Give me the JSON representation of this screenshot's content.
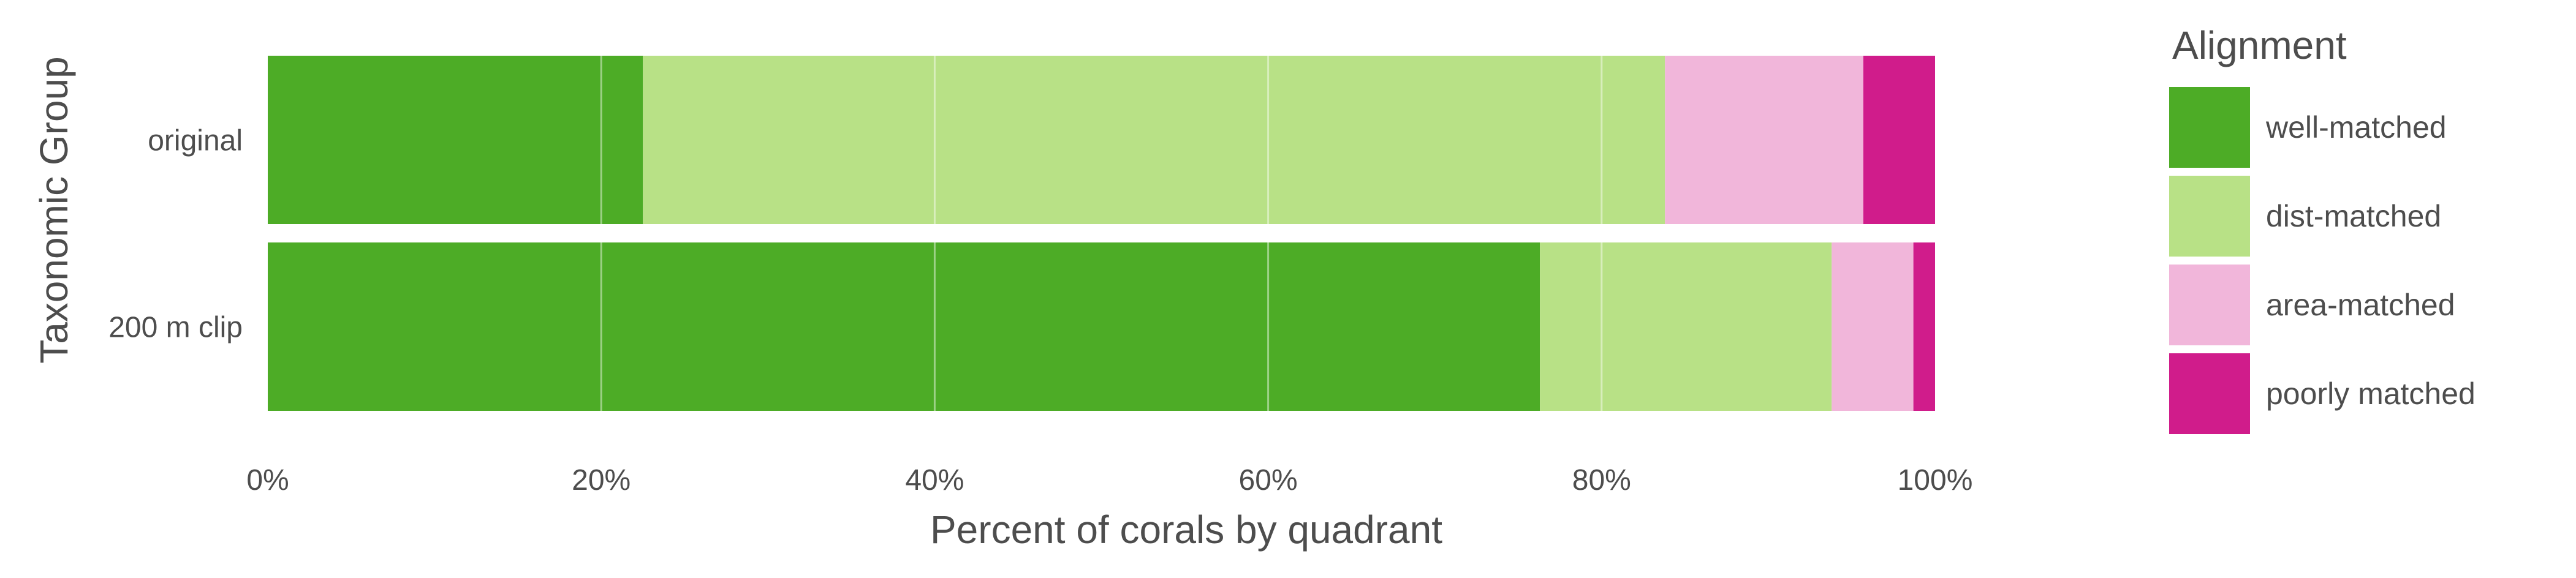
{
  "chart_data": {
    "type": "bar",
    "orientation": "horizontal",
    "stacked": true,
    "xlabel": "Percent of corals by quadrant",
    "ylabel": "Taxonomic Group",
    "categories": [
      "original",
      "200 m clip"
    ],
    "xlim": [
      0,
      100
    ],
    "x_ticks": [
      "0%",
      "20%",
      "40%",
      "60%",
      "80%",
      "100%"
    ],
    "x_tick_values": [
      0,
      20,
      40,
      60,
      80,
      100
    ],
    "grid": true,
    "legend": {
      "title": "Alignment",
      "position": "right"
    },
    "series": [
      {
        "name": "well-matched",
        "color": "#4dac26",
        "values": [
          22.5,
          76.3
        ]
      },
      {
        "name": "dist-matched",
        "color": "#b8e186",
        "values": [
          61.3,
          17.5
        ]
      },
      {
        "name": "area-matched",
        "color": "#f1b6da",
        "values": [
          11.9,
          4.9
        ]
      },
      {
        "name": "poorly matched",
        "color": "#d01c8b",
        "values": [
          4.3,
          1.3
        ]
      }
    ]
  }
}
